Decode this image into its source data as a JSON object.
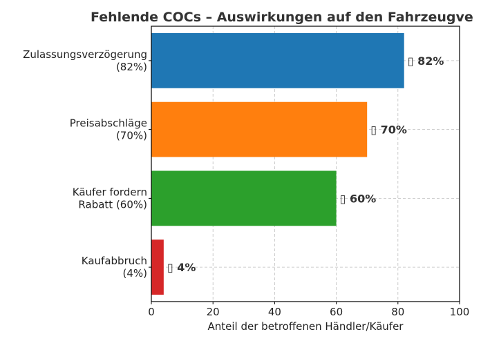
{
  "chart_data": {
    "type": "bar",
    "orientation": "horizontal",
    "title": "Fehlende COCs – Auswirkungen auf den Fahrzeugve",
    "xlabel": "Anteil der betroffenen Händler/Käufer",
    "ylabel": "",
    "xlim": [
      0,
      100
    ],
    "xticks": [
      0,
      20,
      40,
      60,
      80,
      100
    ],
    "grid": true,
    "categories": [
      [
        "Zulassungsverzögerung",
        "(82%)"
      ],
      [
        "Preisabschläge",
        "(70%)"
      ],
      [
        "Käufer fordern",
        "Rabatt (60%)"
      ],
      [
        "Kaufabbruch",
        "(4%)"
      ]
    ],
    "values": [
      82,
      70,
      60,
      4
    ],
    "data_labels": [
      "▯ 82%",
      "▯ 70%",
      "▯ 60%",
      "▯ 4%"
    ],
    "colors": [
      "#1f77b4",
      "#ff7f0e",
      "#2ca02c",
      "#d62728"
    ]
  }
}
